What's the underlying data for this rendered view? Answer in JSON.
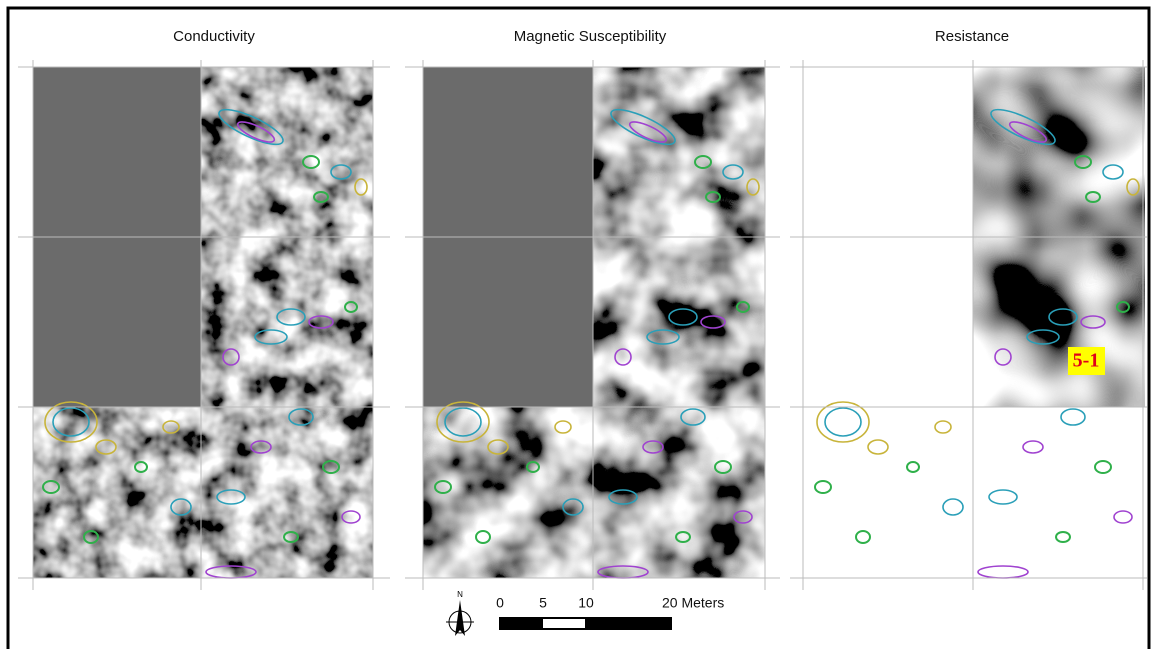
{
  "panels": [
    {
      "title": "Conductivity"
    },
    {
      "title": "Magnetic Susceptibility"
    },
    {
      "title": "Resistance",
      "label": "5-1"
    }
  ],
  "scale_bar": {
    "north": "N",
    "labels": [
      "0",
      "5",
      "10",
      "20 Meters"
    ]
  }
}
